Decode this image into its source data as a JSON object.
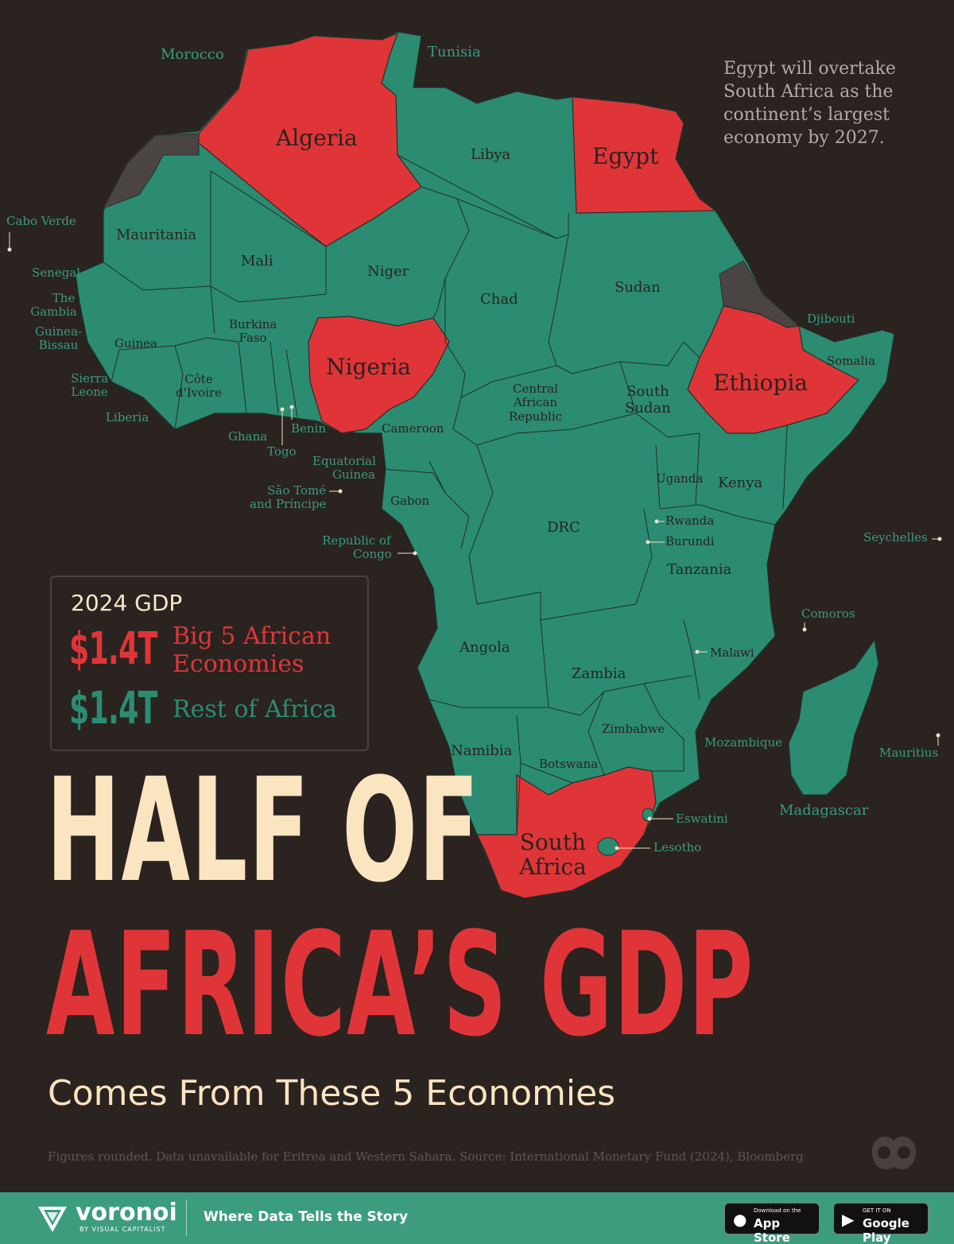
{
  "annotation": "Egypt will overtake South Africa as the continent’s largest economy by 2027.",
  "legend": {
    "title": "2024 GDP",
    "big5_value": "$1.4T",
    "big5_label_1": "Big 5 African",
    "big5_label_2": "Economies",
    "rest_value": "$1.4T",
    "rest_label": "Rest of Africa"
  },
  "headline": {
    "line1": "HALF OF",
    "line2": "AFRICA’S GDP",
    "subtitle": "Comes From These 5 Economies"
  },
  "source": "Figures rounded. Data unavailable for Eritrea and Western Sahara. Source: International Monetary Fund (2024), Bloomberg",
  "big5_countries": [
    "Algeria",
    "Egypt",
    "Nigeria",
    "Ethiopia",
    "South Africa"
  ],
  "countries": {
    "morocco": "Morocco",
    "tunisia": "Tunisia",
    "algeria": "Algeria",
    "libya": "Libya",
    "egypt": "Egypt",
    "cabo_verde": "Cabo Verde",
    "mauritania": "Mauritania",
    "mali": "Mali",
    "niger": "Niger",
    "chad": "Chad",
    "sudan": "Sudan",
    "senegal": "Senegal",
    "gambia_1": "The",
    "gambia_2": "Gambia",
    "guinea_bissau_1": "Guinea-",
    "guinea_bissau_2": "Bissau",
    "guinea": "Guinea",
    "burkina_1": "Burkina",
    "burkina_2": "Faso",
    "nigeria": "Nigeria",
    "djibouti": "Djibouti",
    "ethiopia": "Ethiopia",
    "somalia": "Somalia",
    "sierra_leone_1": "Sierra",
    "sierra_leone_2": "Leone",
    "cote_1": "Côte",
    "cote_2": "d'Ivoire",
    "liberia": "Liberia",
    "car_1": "Central",
    "car_2": "African",
    "car_3": "Republic",
    "south_sudan_1": "South",
    "south_sudan_2": "Sudan",
    "ghana": "Ghana",
    "benin": "Benin",
    "togo": "Togo",
    "cameroon": "Cameroon",
    "eq_guinea_1": "Equatorial",
    "eq_guinea_2": "Guinea",
    "uganda": "Uganda",
    "kenya": "Kenya",
    "sao_tome_1": "São Tomé",
    "sao_tome_2": "and Príncipe",
    "gabon": "Gabon",
    "drc": "DRC",
    "rwanda": "Rwanda",
    "burundi": "Burundi",
    "seychelles": "Seychelles",
    "congo_1": "Republic of",
    "congo_2": "Congo",
    "tanzania": "Tanzania",
    "comoros": "Comoros",
    "angola": "Angola",
    "malawi": "Malawi",
    "zambia": "Zambia",
    "zimbabwe": "Zimbabwe",
    "mozambique": "Mozambique",
    "mauritius": "Mauritius",
    "namibia": "Namibia",
    "botswana": "Botswana",
    "madagascar": "Madagascar",
    "eswatini": "Eswatini",
    "south_africa_1": "South",
    "south_africa_2": "Africa",
    "lesotho": "Lesotho"
  },
  "colors": {
    "background": "#2a2320",
    "big5": "#e03538",
    "rest": "#2b8c72",
    "no_data": "#4a4442",
    "cream": "#fbe4c0",
    "footer": "#3c9d7e"
  },
  "footer": {
    "brand": "voronoi",
    "brand_sub": "BY VISUAL CAPITALIST",
    "tagline": "Where Data Tells the Story",
    "appstore_small": "Download on the",
    "appstore_large": "App Store",
    "googleplay_small": "GET IT ON",
    "googleplay_large": "Google Play"
  },
  "icons": {
    "logo": "voronoi-logo-icon",
    "corner": "visual-capitalist-mark-icon",
    "apple": "apple-icon",
    "play": "google-play-icon"
  }
}
